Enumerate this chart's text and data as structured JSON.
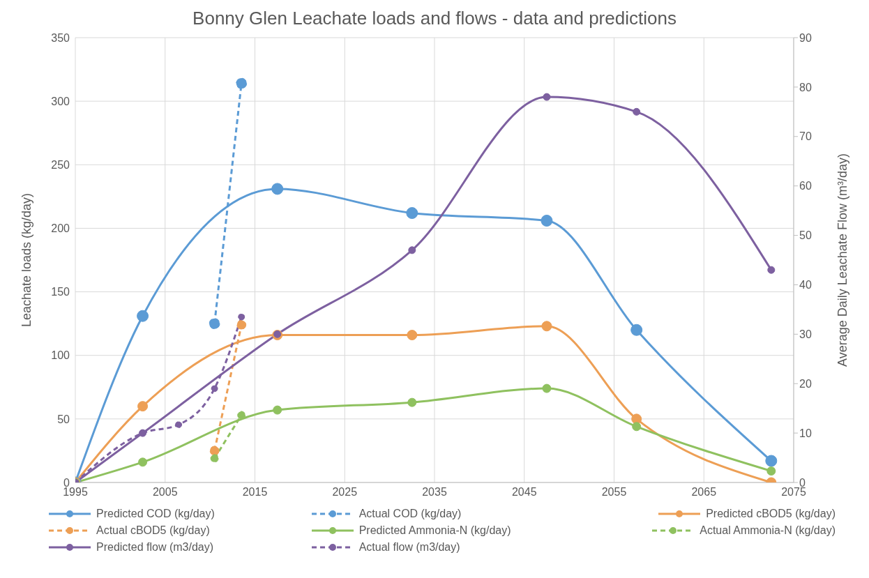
{
  "chart_data": {
    "type": "line",
    "title": "Bonny Glen Leachate loads and flows - data and predictions",
    "ylabel": "Leachate loads (kg/day)",
    "y2label": "Average Daily Leachate Flow (m³/day)",
    "xlim": [
      1995,
      2075
    ],
    "xticks": [
      1995,
      2005,
      2015,
      2025,
      2035,
      2045,
      2055,
      2065,
      2075
    ],
    "ylim": [
      0,
      350
    ],
    "yticks": [
      0,
      50,
      100,
      150,
      200,
      250,
      300,
      350
    ],
    "y2lim": [
      0,
      90
    ],
    "y2ticks": [
      0,
      10,
      20,
      30,
      40,
      50,
      60,
      70,
      80,
      90
    ],
    "grid": true,
    "legend": "bottom",
    "marker": "circle",
    "series": [
      {
        "name": "Predicted COD (kg/day)",
        "color": "#5b9bd5",
        "line_style": "solid",
        "x": [
          1995,
          2002.5,
          2017.5,
          2032.5,
          2047.5,
          2057.5,
          2072.5
        ],
        "values": [
          0,
          131,
          231,
          212,
          206,
          120,
          17
        ]
      },
      {
        "name": "Actual COD (kg/day)",
        "color": "#5b9bd5",
        "line_style": "dashed",
        "x": [
          2010.5,
          2013.5
        ],
        "values": [
          125,
          314
        ]
      },
      {
        "name": "Predicted cBOD5 (kg/day)",
        "color": "#ed9f55",
        "line_style": "solid",
        "x": [
          1995,
          2002.5,
          2017.5,
          2032.5,
          2047.5,
          2057.5,
          2072.5
        ],
        "values": [
          0,
          60,
          116,
          116,
          123,
          50,
          0
        ]
      },
      {
        "name": "Actual cBOD5 (kg/day)",
        "color": "#ed9f55",
        "line_style": "dashed",
        "x": [
          2010.5,
          2013.5
        ],
        "values": [
          25,
          124
        ]
      },
      {
        "name": "Predicted Ammonia-N (kg/day)",
        "color": "#8fc15f",
        "line_style": "solid",
        "x": [
          1995,
          2002.5,
          2017.5,
          2032.5,
          2047.5,
          2057.5,
          2072.5
        ],
        "values": [
          0,
          16,
          57,
          63,
          74,
          44,
          9
        ]
      },
      {
        "name": "Actual Ammonia-N (kg/day)",
        "color": "#8fc15f",
        "line_style": "dashed",
        "x": [
          2010.5,
          2013.5
        ],
        "values": [
          19,
          53
        ]
      },
      {
        "name": "Predicted flow (m3/day)",
        "color": "#7d60a0",
        "line_style": "solid",
        "axis": "y2",
        "x": [
          1995,
          2002.5,
          2017.5,
          2032.5,
          2047.5,
          2057.5,
          2072.5
        ],
        "values": [
          0,
          10,
          30,
          47,
          78,
          75,
          43
        ]
      },
      {
        "name": "Actual flow (m3/day)",
        "color": "#7d60a0",
        "line_style": "dashed",
        "axis": "y2",
        "x": [
          1995,
          2002.5,
          2006.5,
          2010.5,
          2013.5
        ],
        "values": [
          0,
          10,
          11.7,
          19,
          33.5
        ]
      }
    ]
  }
}
